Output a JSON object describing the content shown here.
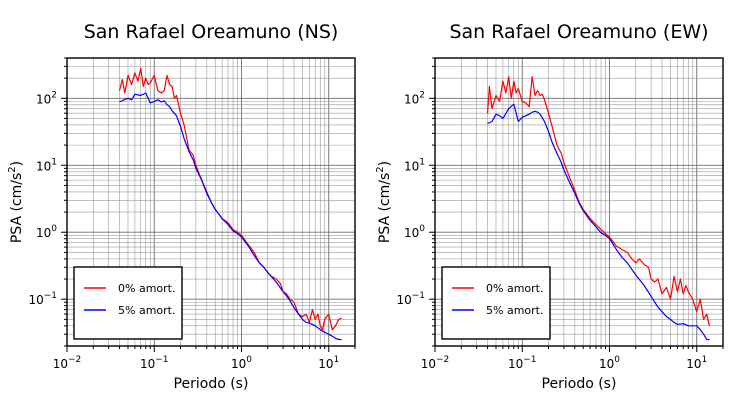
{
  "chart_data": [
    {
      "type": "line",
      "title": "San Rafael Oreamuno (NS)",
      "xlabel": "Periodo (s)",
      "ylabel_base": "PSA (cm/s",
      "ylabel_exp": "2",
      "ylabel_close": ")",
      "xscale": "log",
      "yscale": "log",
      "xlim": [
        0.01,
        20
      ],
      "ylim": [
        0.02,
        400
      ],
      "grid": true,
      "legend_position": "bottom-left",
      "xticks": [
        {
          "base": "10",
          "exp": "−2",
          "value": 0.01
        },
        {
          "base": "10",
          "exp": "−1",
          "value": 0.1
        },
        {
          "base": "10",
          "exp": "0",
          "value": 1
        },
        {
          "base": "10",
          "exp": "1",
          "value": 10
        }
      ],
      "yticks": [
        {
          "base": "10",
          "exp": "−1",
          "value": 0.1
        },
        {
          "base": "10",
          "exp": "0",
          "value": 1
        },
        {
          "base": "10",
          "exp": "1",
          "value": 10
        },
        {
          "base": "10",
          "exp": "2",
          "value": 100
        }
      ],
      "series": [
        {
          "name": "0% amort.",
          "color": "#ff0000",
          "x": [
            0.04,
            0.043,
            0.046,
            0.05,
            0.055,
            0.06,
            0.065,
            0.07,
            0.075,
            0.08,
            0.085,
            0.09,
            0.1,
            0.11,
            0.12,
            0.13,
            0.14,
            0.15,
            0.16,
            0.17,
            0.18,
            0.2,
            0.22,
            0.25,
            0.28,
            0.3,
            0.35,
            0.4,
            0.45,
            0.5,
            0.6,
            0.7,
            0.8,
            0.9,
            1.0,
            1.2,
            1.4,
            1.6,
            1.8,
            2.0,
            2.2,
            2.5,
            2.8,
            3.0,
            3.3,
            3.6,
            4.0,
            4.5,
            5.0,
            5.5,
            6.0,
            6.5,
            7.0,
            7.5,
            8.0,
            8.5,
            9.0,
            10,
            11,
            12,
            13,
            14
          ],
          "y": [
            130,
            190,
            120,
            220,
            160,
            240,
            180,
            280,
            150,
            200,
            160,
            170,
            220,
            130,
            120,
            130,
            220,
            160,
            150,
            100,
            110,
            60,
            40,
            17,
            14,
            10,
            6,
            4,
            2.8,
            2.2,
            1.6,
            1.4,
            1.1,
            1.0,
            0.9,
            0.65,
            0.5,
            0.35,
            0.3,
            0.25,
            0.22,
            0.2,
            0.17,
            0.13,
            0.12,
            0.1,
            0.09,
            0.06,
            0.055,
            0.06,
            0.045,
            0.07,
            0.05,
            0.06,
            0.04,
            0.035,
            0.05,
            0.06,
            0.035,
            0.04,
            0.05,
            0.052
          ]
        },
        {
          "name": "5% amort.",
          "color": "#0000ff",
          "x": [
            0.04,
            0.045,
            0.05,
            0.055,
            0.06,
            0.07,
            0.08,
            0.09,
            0.1,
            0.11,
            0.12,
            0.13,
            0.14,
            0.15,
            0.16,
            0.18,
            0.2,
            0.22,
            0.25,
            0.28,
            0.3,
            0.35,
            0.4,
            0.45,
            0.5,
            0.6,
            0.7,
            0.8,
            0.9,
            1.0,
            1.2,
            1.4,
            1.6,
            1.8,
            2.0,
            2.5,
            3.0,
            3.5,
            4.0,
            4.5,
            5.0,
            5.5,
            6.0,
            7.0,
            8.0,
            9.0,
            10,
            11,
            12,
            13,
            14
          ],
          "y": [
            88,
            95,
            100,
            95,
            115,
            110,
            120,
            85,
            90,
            95,
            88,
            92,
            80,
            75,
            65,
            55,
            38,
            25,
            16,
            12,
            9,
            6,
            3.8,
            2.8,
            2.2,
            1.6,
            1.3,
            1.05,
            0.95,
            0.85,
            0.62,
            0.45,
            0.35,
            0.3,
            0.25,
            0.18,
            0.13,
            0.1,
            0.075,
            0.06,
            0.05,
            0.045,
            0.044,
            0.04,
            0.035,
            0.032,
            0.03,
            0.028,
            0.026,
            0.025,
            0.025
          ]
        }
      ]
    },
    {
      "type": "line",
      "title": "San Rafael Oreamuno (EW)",
      "xlabel": "Periodo (s)",
      "ylabel_base": "PSA (cm/s",
      "ylabel_exp": "2",
      "ylabel_close": ")",
      "xscale": "log",
      "yscale": "log",
      "xlim": [
        0.01,
        20
      ],
      "ylim": [
        0.02,
        400
      ],
      "grid": true,
      "legend_position": "bottom-left",
      "xticks": [
        {
          "base": "10",
          "exp": "−2",
          "value": 0.01
        },
        {
          "base": "10",
          "exp": "−1",
          "value": 0.1
        },
        {
          "base": "10",
          "exp": "0",
          "value": 1
        },
        {
          "base": "10",
          "exp": "1",
          "value": 10
        }
      ],
      "yticks": [
        {
          "base": "10",
          "exp": "−1",
          "value": 0.1
        },
        {
          "base": "10",
          "exp": "0",
          "value": 1
        },
        {
          "base": "10",
          "exp": "1",
          "value": 10
        },
        {
          "base": "10",
          "exp": "2",
          "value": 100
        }
      ],
      "series": [
        {
          "name": "0% amort.",
          "color": "#ff0000",
          "x": [
            0.04,
            0.042,
            0.045,
            0.05,
            0.055,
            0.06,
            0.065,
            0.07,
            0.075,
            0.08,
            0.085,
            0.09,
            0.1,
            0.11,
            0.12,
            0.13,
            0.14,
            0.15,
            0.16,
            0.17,
            0.18,
            0.2,
            0.22,
            0.25,
            0.28,
            0.3,
            0.35,
            0.4,
            0.45,
            0.5,
            0.6,
            0.7,
            0.8,
            0.9,
            1.0,
            1.2,
            1.4,
            1.6,
            1.8,
            2.0,
            2.2,
            2.5,
            2.8,
            3.0,
            3.3,
            3.6,
            4.0,
            4.5,
            5.0,
            5.5,
            6.0,
            6.5,
            7.0,
            7.5,
            8.0,
            9.0,
            10,
            11,
            12,
            13,
            14
          ],
          "y": [
            60,
            150,
            70,
            110,
            90,
            180,
            120,
            210,
            100,
            180,
            120,
            140,
            90,
            85,
            75,
            210,
            110,
            130,
            110,
            115,
            95,
            60,
            38,
            20,
            15,
            11,
            6.5,
            4.2,
            2.8,
            2.2,
            1.6,
            1.3,
            1.1,
            0.95,
            0.85,
            0.62,
            0.55,
            0.5,
            0.4,
            0.35,
            0.4,
            0.33,
            0.3,
            0.2,
            0.18,
            0.2,
            0.12,
            0.15,
            0.1,
            0.22,
            0.13,
            0.2,
            0.12,
            0.16,
            0.13,
            0.1,
            0.065,
            0.1,
            0.05,
            0.06,
            0.04
          ]
        },
        {
          "name": "5% amort.",
          "color": "#0000ff",
          "x": [
            0.04,
            0.045,
            0.05,
            0.055,
            0.06,
            0.07,
            0.08,
            0.09,
            0.1,
            0.11,
            0.12,
            0.13,
            0.14,
            0.15,
            0.16,
            0.18,
            0.2,
            0.22,
            0.25,
            0.28,
            0.3,
            0.35,
            0.4,
            0.45,
            0.5,
            0.6,
            0.7,
            0.8,
            0.9,
            1.0,
            1.2,
            1.4,
            1.6,
            1.8,
            2.0,
            2.5,
            3.0,
            3.5,
            4.0,
            4.5,
            5.0,
            5.5,
            6.0,
            7.0,
            8.0,
            9.0,
            10,
            11,
            12,
            13,
            14
          ],
          "y": [
            42,
            45,
            58,
            55,
            50,
            70,
            82,
            45,
            52,
            55,
            58,
            62,
            64,
            62,
            58,
            45,
            32,
            22,
            15,
            11,
            8.5,
            5.5,
            3.8,
            2.7,
            2.1,
            1.5,
            1.2,
            0.98,
            0.9,
            0.8,
            0.55,
            0.42,
            0.35,
            0.28,
            0.23,
            0.16,
            0.11,
            0.08,
            0.065,
            0.055,
            0.05,
            0.045,
            0.042,
            0.043,
            0.04,
            0.04,
            0.04,
            0.035,
            0.03,
            0.025,
            0.025
          ]
        }
      ]
    }
  ]
}
